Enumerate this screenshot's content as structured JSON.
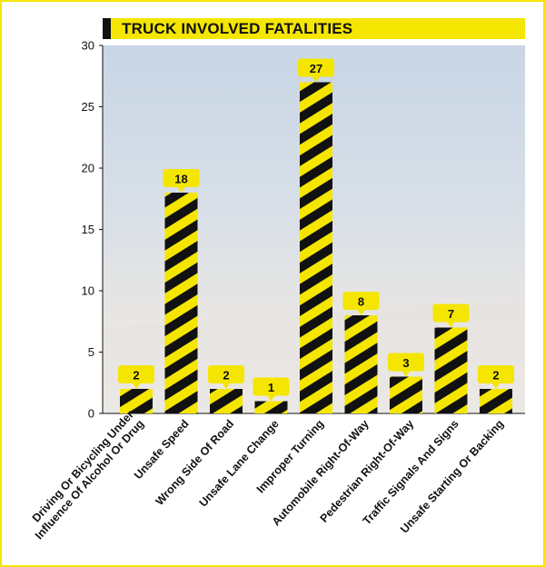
{
  "title": "TRUCK INVOLVED FATALITIES",
  "colors": {
    "accent": "#f4e600",
    "stripe_dark": "#111111",
    "frame": "#f4e600"
  },
  "chart_data": {
    "type": "bar",
    "title": "TRUCK INVOLVED FATALITIES",
    "xlabel": "",
    "ylabel": "",
    "ylim": [
      0,
      30
    ],
    "yticks": [
      0,
      5,
      10,
      15,
      20,
      25,
      30
    ],
    "grid": false,
    "categories": [
      "Driving Or Bicycling Under Influence Of Alcohol Or Drug",
      "Unsafe Speed",
      "Wrong Side Of Road",
      "Unsafe Lane Change",
      "Improper Turning",
      "Automobile Right-Of-Way",
      "Pedestrian Right-Of-Way",
      "Traffic Signals And Signs",
      "Unsafe Starting Or Backing"
    ],
    "category_lines": [
      [
        "Driving Or Bicycling Under",
        "Influence Of Alcohol Or Drug"
      ],
      [
        "Unsafe Speed"
      ],
      [
        "Wrong Side Of Road"
      ],
      [
        "Unsafe Lane Change"
      ],
      [
        "Improper Turning"
      ],
      [
        "Automobile Right-Of-Way"
      ],
      [
        "Pedestrian Right-Of-Way"
      ],
      [
        "Traffic Signals And Signs"
      ],
      [
        "Unsafe Starting Or Backing"
      ]
    ],
    "values": [
      2,
      18,
      2,
      1,
      27,
      8,
      3,
      7,
      2
    ]
  }
}
